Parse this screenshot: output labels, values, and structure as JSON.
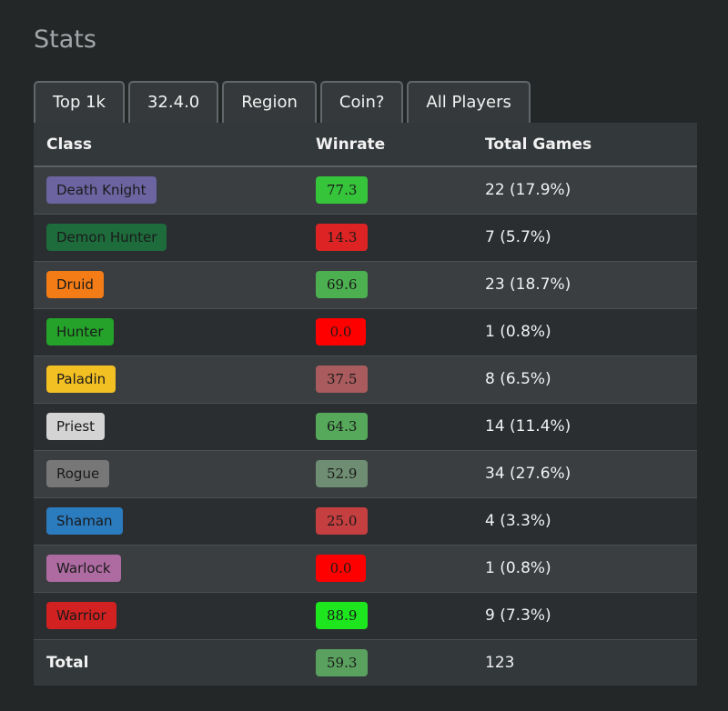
{
  "page": {
    "title": "Stats"
  },
  "filters": [
    {
      "label": "Top 1k"
    },
    {
      "label": "32.4.0"
    },
    {
      "label": "Region"
    },
    {
      "label": "Coin?"
    },
    {
      "label": "All Players"
    }
  ],
  "table": {
    "headers": {
      "class": "Class",
      "winrate": "Winrate",
      "games": "Total Games"
    },
    "rows": [
      {
        "class": "Death Knight",
        "class_color": "#6b64a0",
        "class_text_color": "#1a1a1a",
        "winrate": "77.3",
        "winrate_color": "#36c53a",
        "winrate_text_color": "#1a1a1a",
        "games": "22 (17.9%)"
      },
      {
        "class": "Demon Hunter",
        "class_color": "#1e6b3c",
        "class_text_color": "#1a1a1a",
        "winrate": "14.3",
        "winrate_color": "#dd2323",
        "winrate_text_color": "#1a1a1a",
        "games": "7 (5.7%)"
      },
      {
        "class": "Druid",
        "class_color": "#f37c16",
        "class_text_color": "#1a1a1a",
        "winrate": "69.6",
        "winrate_color": "#4caf50",
        "winrate_text_color": "#1a1a1a",
        "games": "23 (18.7%)"
      },
      {
        "class": "Hunter",
        "class_color": "#24a22a",
        "class_text_color": "#1a1a1a",
        "winrate": "0.0",
        "winrate_color": "#ff0000",
        "winrate_text_color": "#1a1a1a",
        "games": "1 (0.8%)"
      },
      {
        "class": "Paladin",
        "class_color": "#f3c023",
        "class_text_color": "#1a1a1a",
        "winrate": "37.5",
        "winrate_color": "#aa5b5d",
        "winrate_text_color": "#1a1a1a",
        "games": "8 (6.5%)"
      },
      {
        "class": "Priest",
        "class_color": "#d4d4d4",
        "class_text_color": "#1a1a1a",
        "winrate": "64.3",
        "winrate_color": "#56a85a",
        "winrate_text_color": "#1a1a1a",
        "games": "14 (11.4%)"
      },
      {
        "class": "Rogue",
        "class_color": "#777777",
        "class_text_color": "#1a1a1a",
        "winrate": "52.9",
        "winrate_color": "#6f8d72",
        "winrate_text_color": "#1a1a1a",
        "games": "34 (27.6%)"
      },
      {
        "class": "Shaman",
        "class_color": "#2b7bbf",
        "class_text_color": "#1a1a1a",
        "winrate": "25.0",
        "winrate_color": "#c53e40",
        "winrate_text_color": "#1a1a1a",
        "games": "4 (3.3%)"
      },
      {
        "class": "Warlock",
        "class_color": "#ae6ba2",
        "class_text_color": "#1a1a1a",
        "winrate": "0.0",
        "winrate_color": "#ff0000",
        "winrate_text_color": "#1a1a1a",
        "games": "1 (0.8%)"
      },
      {
        "class": "Warrior",
        "class_color": "#d12121",
        "class_text_color": "#1a1a1a",
        "winrate": "88.9",
        "winrate_color": "#1ee61e",
        "winrate_text_color": "#1a1a1a",
        "games": "9 (7.3%)"
      }
    ],
    "total": {
      "label": "Total",
      "winrate": "59.3",
      "winrate_color": "#5aa05e",
      "winrate_text_color": "#1a1a1a",
      "games": "123"
    }
  }
}
